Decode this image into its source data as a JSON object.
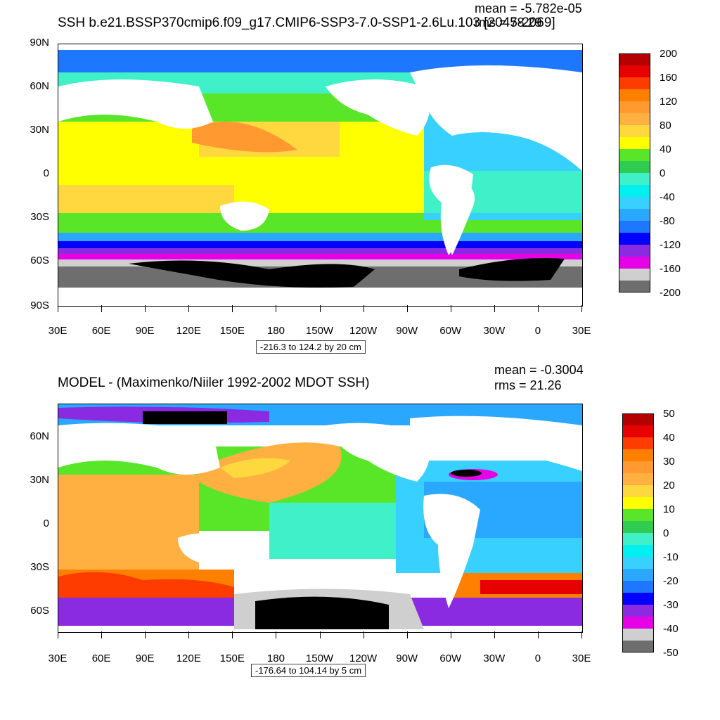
{
  "top": {
    "title": "SSH b.e21.BSSP370cmip6.f09_g17.CMIP6-SSP3-7.0-SSP1-2.6Lu.103 [2045-2069]",
    "mean": "mean = -5.782e-05",
    "rms": "rms = 78.29",
    "range": "-216.3 to 124.2 by 20 cm",
    "lat_labels": [
      "90N",
      "60N",
      "30N",
      "0",
      "30S",
      "60S",
      "90S"
    ],
    "lon_labels": [
      "30E",
      "60E",
      "90E",
      "120E",
      "150E",
      "180",
      "150W",
      "120W",
      "90W",
      "60W",
      "30W",
      "0",
      "30E"
    ],
    "colorbar_labels": [
      "200",
      "160",
      "120",
      "80",
      "40",
      "0",
      "-40",
      "-80",
      "-120",
      "-160",
      "-200"
    ]
  },
  "bottom": {
    "title": "MODEL - (Maximenko/Niiler 1992-2002 MDOT SSH)",
    "mean": "mean = -0.3004",
    "rms": "rms = 21.26",
    "range": "-176.64 to 104.14 by 5 cm",
    "lat_labels": [
      "60N",
      "30N",
      "0",
      "30S",
      "60S"
    ],
    "lon_labels": [
      "30E",
      "60E",
      "90E",
      "120E",
      "150E",
      "180",
      "150W",
      "120W",
      "90W",
      "60W",
      "30W",
      "0",
      "30E"
    ],
    "colorbar_labels": [
      "50",
      "40",
      "30",
      "20",
      "10",
      "0",
      "-10",
      "-20",
      "-30",
      "-40",
      "-50"
    ]
  },
  "colors": {
    "palette": [
      "#6e6e6e",
      "#cfcfcf",
      "#e600e6",
      "#8a2be2",
      "#0000ff",
      "#1e78ff",
      "#2aa8ff",
      "#38d0ff",
      "#00f0f0",
      "#40f0c8",
      "#2ecc50",
      "#5ae628",
      "#ffff00",
      "#ffd840",
      "#ffb040",
      "#ff9930",
      "#ff7f00",
      "#ff3c00",
      "#e60000",
      "#b40000"
    ],
    "land": "#ffffff",
    "ice": "#000000"
  }
}
